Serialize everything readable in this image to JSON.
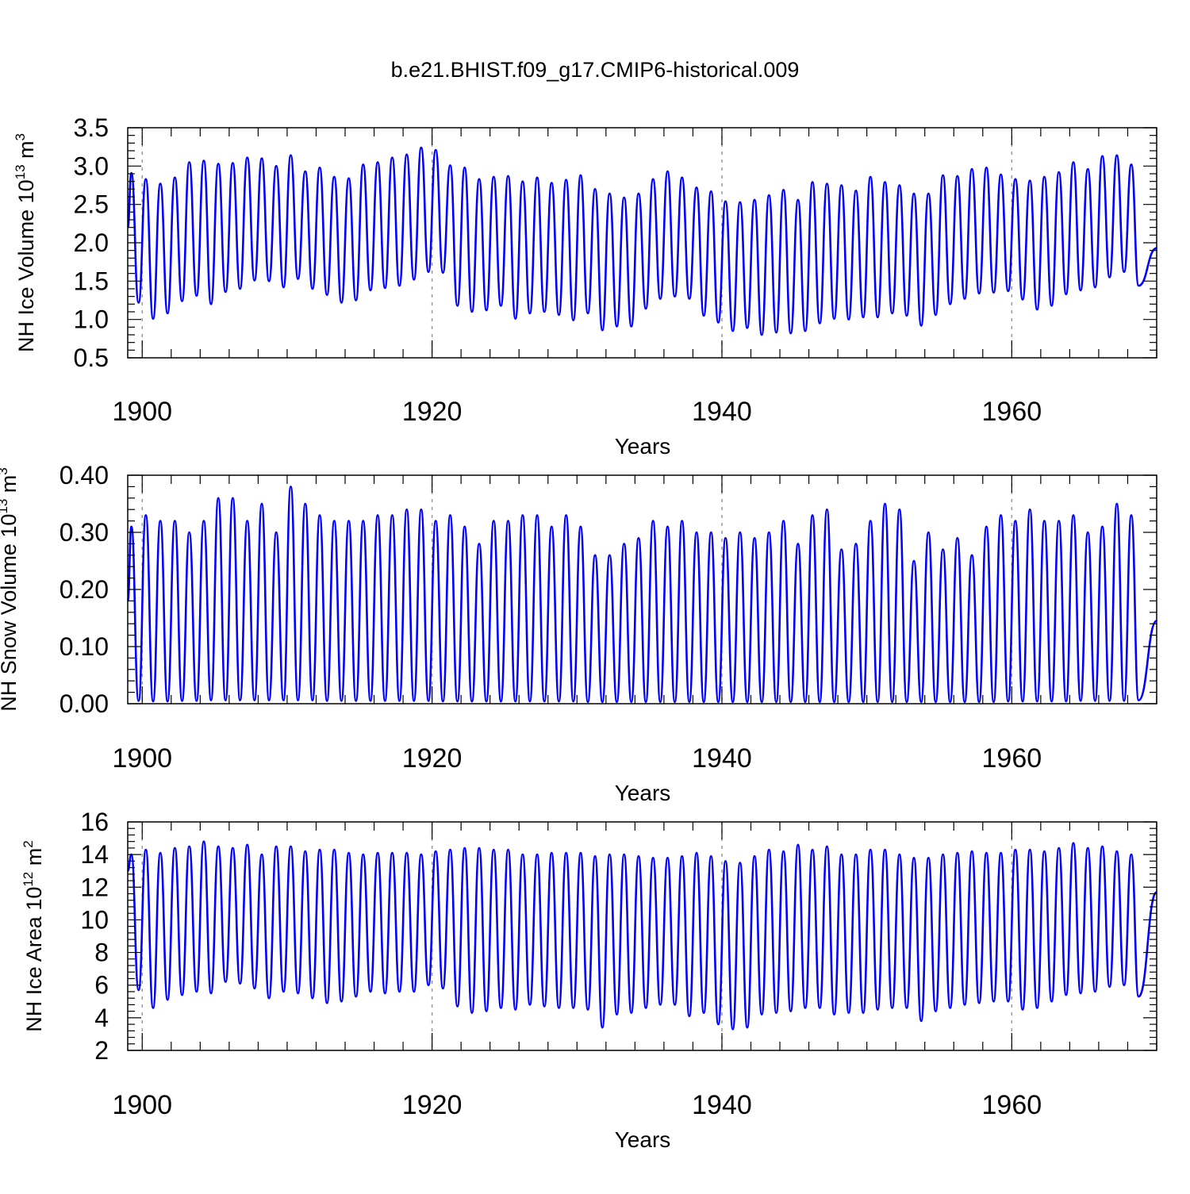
{
  "title": "b.e21.BHIST.f09_g17.CMIP6-historical.009",
  "colors": {
    "series": "#0000ff",
    "axis": "#000000",
    "grid": "#999999"
  },
  "chart_data": [
    {
      "type": "line",
      "title": "b.e21.BHIST.f09_g17.CMIP6-historical.009",
      "xlabel": "Years",
      "ylabel": "NH Ice Volume 10",
      "ylabel_exp": "13",
      "ylabel_unit": " m",
      "ylabel_unit_exp": "3",
      "xlim": [
        1899,
        1970
      ],
      "ylim": [
        0.5,
        3.5
      ],
      "xticks": [
        1900,
        1920,
        1940,
        1960
      ],
      "xtick_labels": [
        "1900",
        "1920",
        "1940",
        "1960"
      ],
      "yticks": [
        0.5,
        1.0,
        1.5,
        2.0,
        2.5,
        3.0,
        3.5
      ],
      "ytick_labels": [
        "0.5",
        "1.0",
        "1.5",
        "2.0",
        "2.5",
        "3.0",
        "3.5"
      ],
      "start": {
        "year": 1899.0,
        "value": 2.2
      },
      "end": {
        "year": 1970.0,
        "value": 1.93
      },
      "series": [
        {
          "name": "NH Ice Volume",
          "annual_max": [
            2.91,
            2.83,
            2.77,
            2.85,
            3.05,
            3.07,
            3.03,
            3.04,
            3.11,
            3.1,
            3.0,
            3.14,
            2.93,
            2.98,
            2.86,
            2.84,
            3.02,
            3.05,
            3.11,
            3.15,
            3.24,
            3.21,
            3.01,
            2.98,
            2.83,
            2.86,
            2.87,
            2.8,
            2.85,
            2.78,
            2.82,
            2.88,
            2.7,
            2.64,
            2.59,
            2.64,
            2.83,
            2.93,
            2.85,
            2.72,
            2.67,
            2.54,
            2.53,
            2.56,
            2.62,
            2.69,
            2.56,
            2.79,
            2.77,
            2.75,
            2.68,
            2.86,
            2.79,
            2.75,
            2.64,
            2.64,
            2.88,
            2.87,
            2.96,
            2.98,
            2.89,
            2.83,
            2.81,
            2.86,
            2.92,
            3.05,
            2.96,
            3.13,
            3.14,
            3.02
          ],
          "annual_min": [
            1.22,
            1.01,
            1.08,
            1.24,
            1.31,
            1.2,
            1.36,
            1.4,
            1.51,
            1.5,
            1.42,
            1.53,
            1.4,
            1.32,
            1.22,
            1.25,
            1.38,
            1.41,
            1.44,
            1.52,
            1.62,
            1.61,
            1.18,
            1.1,
            1.12,
            1.18,
            1.01,
            1.08,
            1.1,
            1.06,
            0.99,
            1.08,
            0.86,
            0.91,
            0.91,
            1.14,
            1.27,
            1.3,
            1.27,
            1.05,
            0.96,
            0.85,
            0.89,
            0.8,
            0.83,
            0.82,
            0.85,
            0.95,
            1.01,
            1.0,
            1.03,
            1.03,
            1.08,
            1.05,
            0.92,
            1.06,
            1.2,
            1.27,
            1.34,
            1.35,
            1.37,
            1.26,
            1.13,
            1.18,
            1.33,
            1.38,
            1.42,
            1.55,
            1.62,
            1.44
          ]
        }
      ]
    },
    {
      "type": "line",
      "xlabel": "Years",
      "ylabel": "NH Snow Volume 10",
      "ylabel_exp": "13",
      "ylabel_unit": " m",
      "ylabel_unit_exp": "3",
      "xlim": [
        1899,
        1970
      ],
      "ylim": [
        0.0,
        0.4
      ],
      "xticks": [
        1900,
        1920,
        1940,
        1960
      ],
      "xtick_labels": [
        "1900",
        "1920",
        "1940",
        "1960"
      ],
      "yticks": [
        0.0,
        0.1,
        0.2,
        0.3,
        0.4
      ],
      "ytick_labels": [
        "0.00",
        "0.10",
        "0.20",
        "0.30",
        "0.40"
      ],
      "start": {
        "year": 1899.0,
        "value": 0.18
      },
      "end": {
        "year": 1970.0,
        "value": 0.145
      },
      "series": [
        {
          "name": "NH Snow Volume",
          "annual_max": [
            0.31,
            0.33,
            0.32,
            0.32,
            0.3,
            0.32,
            0.36,
            0.36,
            0.32,
            0.35,
            0.3,
            0.38,
            0.35,
            0.33,
            0.32,
            0.32,
            0.32,
            0.33,
            0.33,
            0.34,
            0.34,
            0.32,
            0.33,
            0.31,
            0.28,
            0.32,
            0.32,
            0.33,
            0.33,
            0.31,
            0.33,
            0.31,
            0.26,
            0.26,
            0.28,
            0.29,
            0.32,
            0.31,
            0.32,
            0.3,
            0.3,
            0.29,
            0.3,
            0.29,
            0.3,
            0.32,
            0.28,
            0.33,
            0.34,
            0.27,
            0.28,
            0.32,
            0.35,
            0.34,
            0.25,
            0.3,
            0.27,
            0.29,
            0.26,
            0.31,
            0.33,
            0.32,
            0.34,
            0.32,
            0.32,
            0.33,
            0.3,
            0.31,
            0.35,
            0.33
          ],
          "annual_min": [
            0.005,
            0.004,
            0.004,
            0.005,
            0.005,
            0.006,
            0.006,
            0.006,
            0.006,
            0.006,
            0.006,
            0.006,
            0.006,
            0.005,
            0.005,
            0.005,
            0.005,
            0.005,
            0.005,
            0.005,
            0.005,
            0.004,
            0.004,
            0.004,
            0.004,
            0.004,
            0.004,
            0.004,
            0.004,
            0.004,
            0.004,
            0.003,
            0.003,
            0.003,
            0.003,
            0.003,
            0.003,
            0.003,
            0.003,
            0.003,
            0.003,
            0.003,
            0.003,
            0.003,
            0.003,
            0.003,
            0.003,
            0.003,
            0.003,
            0.003,
            0.003,
            0.003,
            0.003,
            0.003,
            0.003,
            0.003,
            0.003,
            0.003,
            0.003,
            0.003,
            0.004,
            0.004,
            0.004,
            0.004,
            0.004,
            0.005,
            0.005,
            0.005,
            0.005,
            0.006
          ]
        }
      ]
    },
    {
      "type": "line",
      "xlabel": "Years",
      "ylabel": "NH Ice Area 10",
      "ylabel_exp": "12",
      "ylabel_unit": " m",
      "ylabel_unit_exp": "2",
      "xlim": [
        1899,
        1970
      ],
      "ylim": [
        2,
        16
      ],
      "xticks": [
        1900,
        1920,
        1940,
        1960
      ],
      "xtick_labels": [
        "1900",
        "1920",
        "1940",
        "1960"
      ],
      "yticks": [
        2,
        4,
        6,
        8,
        10,
        12,
        14,
        16
      ],
      "ytick_labels": [
        "2",
        "4",
        "6",
        "8",
        "10",
        "12",
        "14",
        "16"
      ],
      "start": {
        "year": 1899.0,
        "value": 13.0
      },
      "end": {
        "year": 1970.0,
        "value": 11.7
      },
      "series": [
        {
          "name": "NH Ice Area",
          "annual_max": [
            14.0,
            14.3,
            14.1,
            14.4,
            14.5,
            14.8,
            14.5,
            14.4,
            14.6,
            14.0,
            14.5,
            14.5,
            14.2,
            14.3,
            14.3,
            14.1,
            14.0,
            14.1,
            14.1,
            14.1,
            14.0,
            14.2,
            14.3,
            14.4,
            14.4,
            14.3,
            14.3,
            14.0,
            14.0,
            14.1,
            14.1,
            14.1,
            13.9,
            14.0,
            14.0,
            13.9,
            13.8,
            13.8,
            13.9,
            14.1,
            13.9,
            13.6,
            13.5,
            13.9,
            14.3,
            14.2,
            14.6,
            14.3,
            14.5,
            14.0,
            14.0,
            14.3,
            14.3,
            14.0,
            13.8,
            13.8,
            14.0,
            14.1,
            14.2,
            14.1,
            14.1,
            14.3,
            14.3,
            14.2,
            14.4,
            14.7,
            14.4,
            14.5,
            14.2,
            14.0
          ],
          "annual_min": [
            5.7,
            4.6,
            5.1,
            5.4,
            5.6,
            5.5,
            6.2,
            6.1,
            5.8,
            5.2,
            5.6,
            5.5,
            5.2,
            4.9,
            5.0,
            5.3,
            5.6,
            5.5,
            5.6,
            5.6,
            6.0,
            5.8,
            4.7,
            4.3,
            4.4,
            4.6,
            4.5,
            4.8,
            4.7,
            4.6,
            4.6,
            4.5,
            3.4,
            4.2,
            4.3,
            4.6,
            4.8,
            4.8,
            4.1,
            4.3,
            3.6,
            3.3,
            3.4,
            4.2,
            4.3,
            4.4,
            4.6,
            4.6,
            4.2,
            4.3,
            4.3,
            4.5,
            4.6,
            4.6,
            3.8,
            4.4,
            4.6,
            4.8,
            4.9,
            5.0,
            5.0,
            4.5,
            4.6,
            5.0,
            5.4,
            5.5,
            5.6,
            5.9,
            6.0,
            5.3
          ]
        }
      ]
    }
  ]
}
